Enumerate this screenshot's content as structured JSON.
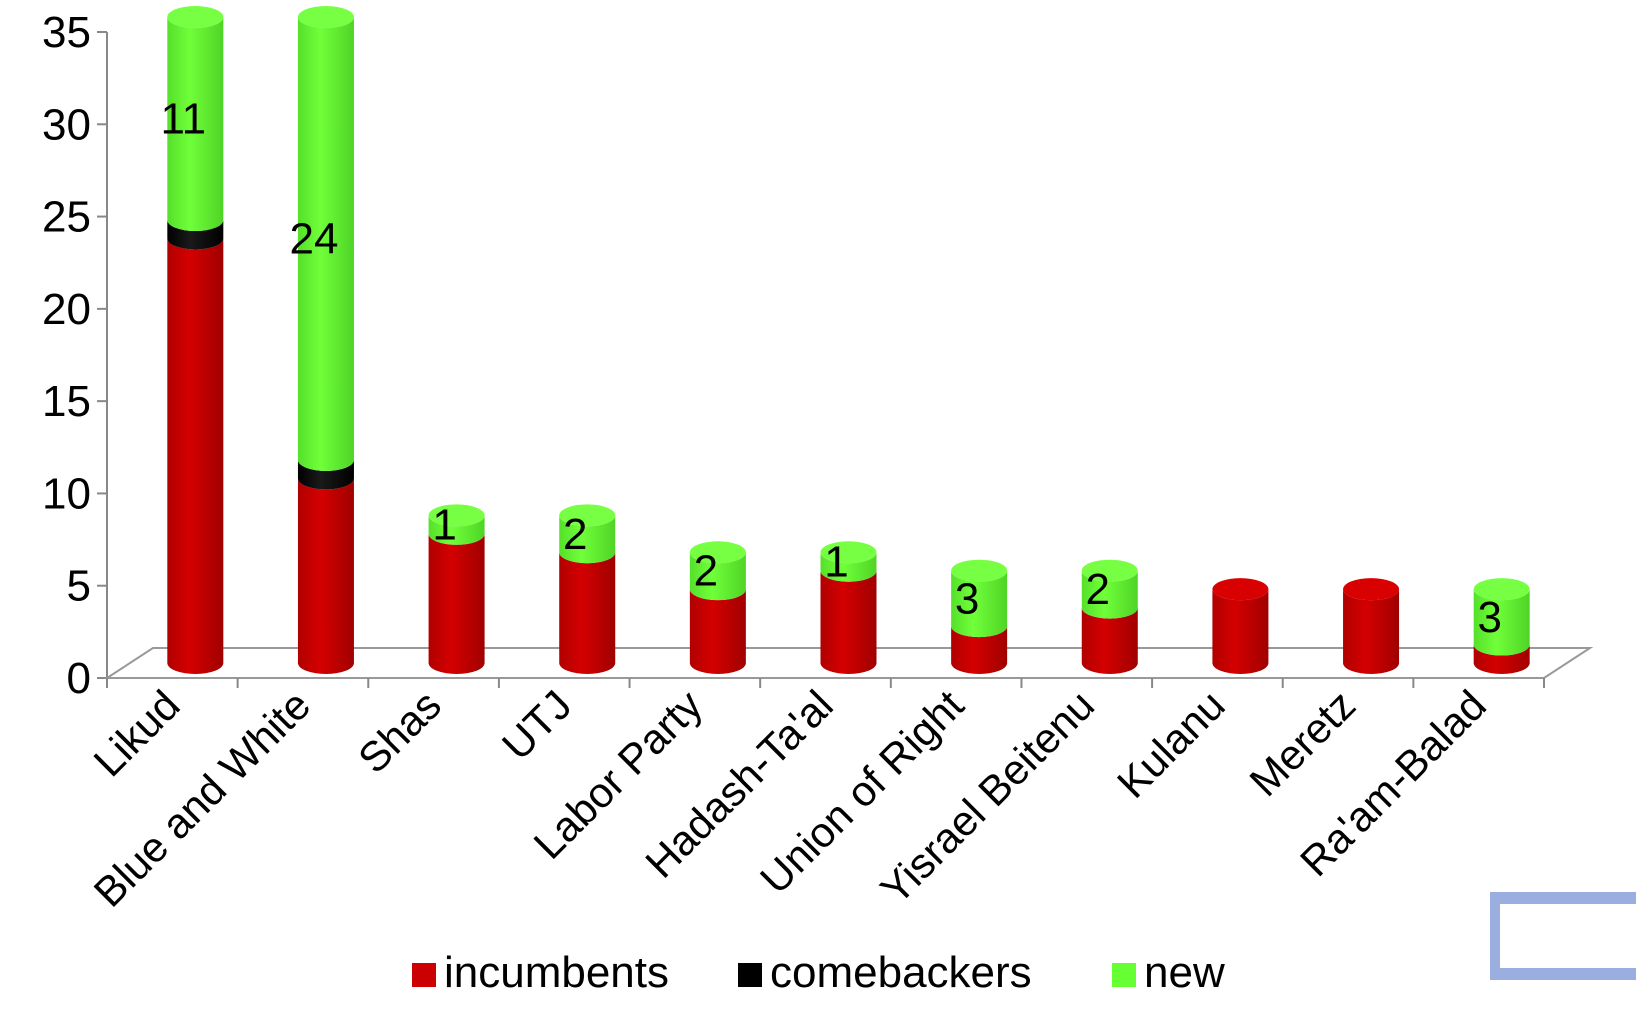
{
  "chart_data": {
    "type": "bar",
    "stacked": true,
    "style": "3d-cylinder",
    "title": "",
    "xlabel": "",
    "ylabel": "",
    "ylim": [
      0,
      35
    ],
    "yticks": [
      0,
      5,
      10,
      15,
      20,
      25,
      30,
      35
    ],
    "grid": false,
    "legend_position": "bottom",
    "categories": [
      "Likud",
      "Blue and White",
      "Shas",
      "UTJ",
      "Labor Party",
      "Hadash-Ta'al",
      "Union of Right",
      "Yisrael Beitenu",
      "Kulanu",
      "Meretz",
      "Ra'am-Balad"
    ],
    "series": [
      {
        "name": "incumbents",
        "color": "#cc0000",
        "values": [
          23,
          10,
          7,
          6,
          4,
          5,
          2,
          3,
          4,
          4,
          1
        ]
      },
      {
        "name": "comebackers",
        "color": "#000000",
        "values": [
          1,
          1,
          0,
          0,
          0,
          0,
          0,
          0,
          0,
          0,
          0
        ]
      },
      {
        "name": "new",
        "color": "#66ff33",
        "values": [
          11,
          24,
          1,
          2,
          2,
          1,
          3,
          2,
          0,
          0,
          3
        ]
      }
    ],
    "data_labels": {
      "series": "new",
      "values": [
        "11",
        "24",
        "1",
        "2",
        "2",
        "1",
        "3",
        "2",
        "",
        "",
        "3"
      ]
    }
  },
  "decor": {
    "corner_icon": "battery-icon"
  }
}
